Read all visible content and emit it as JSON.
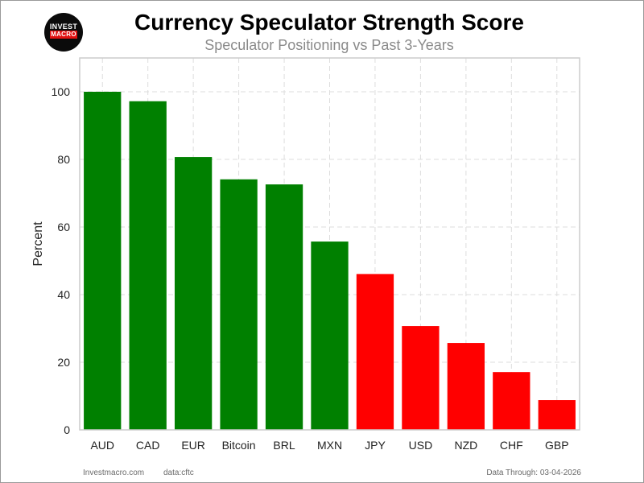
{
  "header": {
    "logo_top": "INVEST",
    "logo_bottom": "MACRO",
    "title": "Currency Speculator Strength Score",
    "subtitle": "Speculator Positioning vs Past 3-Years"
  },
  "footer": {
    "site": "Investmacro.com",
    "source": "data:cftc",
    "data_through": "Data Through: 03-04-2026"
  },
  "colors": {
    "positive": "#008000",
    "negative": "#ff0000",
    "grid": "#dddddd",
    "axis": "#cccccc"
  },
  "chart_data": {
    "type": "bar",
    "title": "Currency Speculator Strength Score",
    "subtitle": "Speculator Positioning vs Past 3-Years",
    "xlabel": "",
    "ylabel": "Percent",
    "ylim": [
      0,
      110
    ],
    "yticks": [
      0,
      20,
      40,
      60,
      80,
      100
    ],
    "grid": true,
    "categories": [
      "AUD",
      "CAD",
      "EUR",
      "Bitcoin",
      "BRL",
      "MXN",
      "JPY",
      "USD",
      "NZD",
      "CHF",
      "GBP"
    ],
    "values": [
      100,
      97.2,
      80.7,
      74.1,
      72.6,
      55.7,
      46.1,
      30.7,
      25.7,
      17.1,
      8.8
    ],
    "bar_colors": [
      "#008000",
      "#008000",
      "#008000",
      "#008000",
      "#008000",
      "#008000",
      "#ff0000",
      "#ff0000",
      "#ff0000",
      "#ff0000",
      "#ff0000"
    ]
  }
}
